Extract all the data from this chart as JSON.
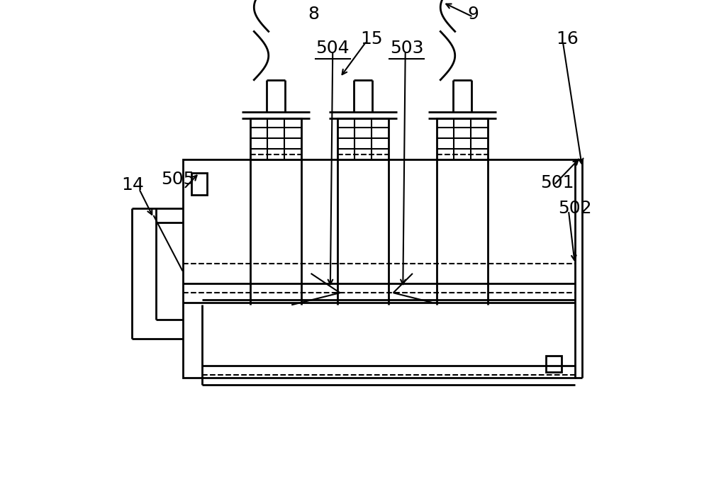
{
  "bg_color": "#ffffff",
  "line_color": "#000000",
  "lw": 2.0,
  "lw_thin": 1.5,
  "label_fontsize": 18
}
